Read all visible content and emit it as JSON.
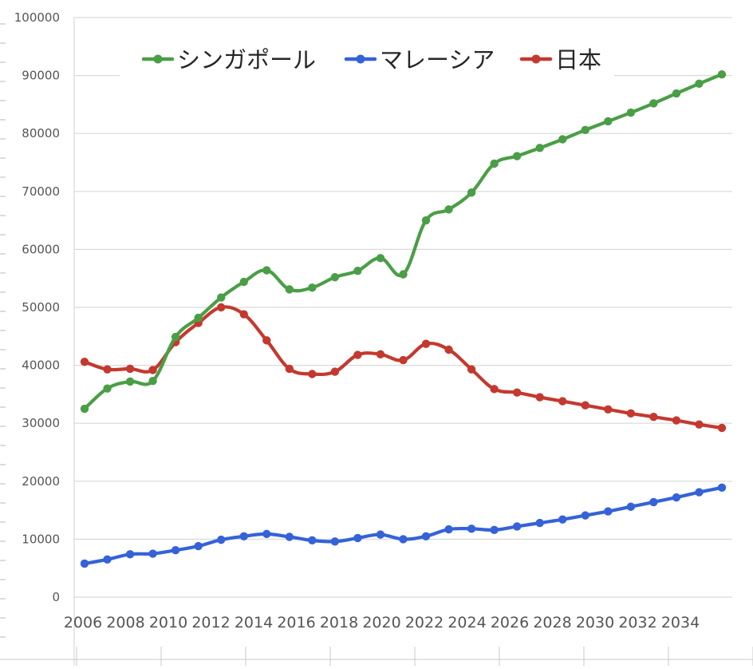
{
  "chart_data": {
    "type": "line",
    "title": "",
    "xlabel": "",
    "ylabel": "",
    "ylim": [
      0,
      100000
    ],
    "yticks": [
      0,
      10000,
      20000,
      30000,
      40000,
      50000,
      60000,
      70000,
      80000,
      90000,
      100000
    ],
    "ytick_labels": [
      "0",
      "10000",
      "20000",
      "30000",
      "40000",
      "50000",
      "60000",
      "70000",
      "80000",
      "90000",
      "100000"
    ],
    "xtick_labels": [
      "2006",
      "2008",
      "2010",
      "2012",
      "2014",
      "2016",
      "2018",
      "2020",
      "2022",
      "2024",
      "2026",
      "2028",
      "2030",
      "2032",
      "2034"
    ],
    "grid": true,
    "legend_position": "top",
    "x": [
      2006,
      2007,
      2008,
      2009,
      2010,
      2011,
      2012,
      2013,
      2014,
      2015,
      2016,
      2017,
      2018,
      2019,
      2020,
      2021,
      2022,
      2023,
      2024,
      2025,
      2026,
      2027,
      2028,
      2029,
      2030,
      2031,
      2032,
      2033,
      2034
    ],
    "series": [
      {
        "name": "シンガポール",
        "color": "#4a9e46",
        "values": [
          32500,
          36000,
          37200,
          37300,
          44900,
          48200,
          51700,
          54400,
          56400,
          53100,
          53400,
          55200,
          56300,
          58500,
          55700,
          65000,
          66900,
          69800,
          74800,
          76100,
          77500,
          79000,
          80600,
          82100,
          83600,
          85200,
          86900,
          88600,
          90200
        ]
      },
      {
        "name": "マレーシア",
        "color": "#3562d8",
        "values": [
          5800,
          6500,
          7400,
          7500,
          8100,
          8800,
          9900,
          10500,
          10900,
          10400,
          9800,
          9600,
          10200,
          10800,
          10000,
          10500,
          11700,
          11800,
          11600,
          12200,
          12800,
          13400,
          14100,
          14800,
          15600,
          16400,
          17200,
          18100,
          18900
        ]
      },
      {
        "name": "日本",
        "color": "#c4392f",
        "values": [
          40600,
          39300,
          39400,
          39200,
          44000,
          47300,
          50000,
          48800,
          44300,
          39400,
          38500,
          38900,
          41800,
          41900,
          40900,
          43700,
          42700,
          39300,
          35900,
          35300,
          34500,
          33800,
          33100,
          32400,
          31700,
          31100,
          30500,
          29800,
          29200
        ]
      }
    ]
  }
}
